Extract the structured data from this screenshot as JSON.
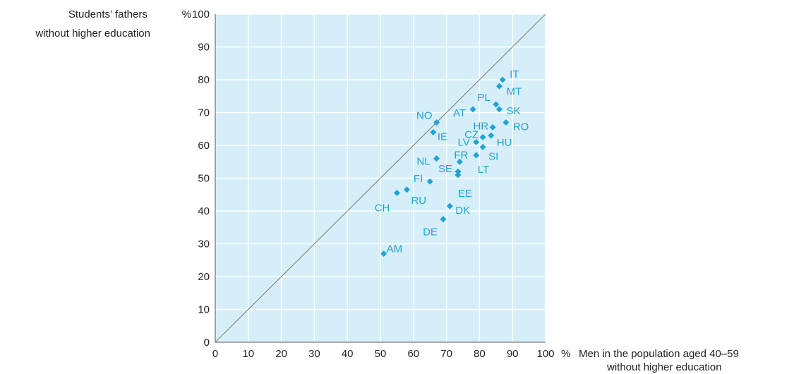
{
  "chart_data": {
    "type": "scatter",
    "ylabel": [
      "Students’ fathers",
      "without higher education"
    ],
    "xlabel": [
      "Men in the population aged 40–59",
      "without higher education"
    ],
    "xlim": [
      0,
      100
    ],
    "ylim": [
      0,
      100
    ],
    "x_ticks": [
      0,
      10,
      20,
      30,
      40,
      50,
      60,
      70,
      80,
      90,
      100
    ],
    "y_ticks": [
      0,
      10,
      20,
      30,
      40,
      50,
      60,
      70,
      80,
      90,
      100
    ],
    "x_unit": "%",
    "y_unit": "%",
    "grid": true,
    "reference_line": "diagonal",
    "colors": {
      "plot_bg": "#d6eef8",
      "grid": "#ffffff",
      "marker": "#1fa3d6",
      "diagonal": "#8a8a8a",
      "axis": "#555555"
    },
    "points": [
      {
        "label": "IT",
        "x": 87,
        "y": 80
      },
      {
        "label": "MT",
        "x": 86,
        "y": 78
      },
      {
        "label": "PL",
        "x": 85,
        "y": 72.5
      },
      {
        "label": "SK",
        "x": 86,
        "y": 71
      },
      {
        "label": "AT",
        "x": 78,
        "y": 71
      },
      {
        "label": "NO",
        "x": 67,
        "y": 67
      },
      {
        "label": "RO",
        "x": 88,
        "y": 67
      },
      {
        "label": "HR",
        "x": 84,
        "y": 65.5
      },
      {
        "label": "IE",
        "x": 66,
        "y": 64
      },
      {
        "label": "HU",
        "x": 83.5,
        "y": 63
      },
      {
        "label": "CZ",
        "x": 81,
        "y": 62.5
      },
      {
        "label": "LV",
        "x": 79,
        "y": 61
      },
      {
        "label": "SI",
        "x": 81,
        "y": 59.5
      },
      {
        "label": "LT",
        "x": 79,
        "y": 57
      },
      {
        "label": "NL",
        "x": 67,
        "y": 56
      },
      {
        "label": "FR",
        "x": 74,
        "y": 55
      },
      {
        "label": "SE",
        "x": 73.5,
        "y": 52
      },
      {
        "label": "EE",
        "x": 73.5,
        "y": 51
      },
      {
        "label": "FI",
        "x": 65,
        "y": 49
      },
      {
        "label": "RU",
        "x": 58,
        "y": 46.5
      },
      {
        "label": "CH",
        "x": 55,
        "y": 45.5
      },
      {
        "label": "DK",
        "x": 71,
        "y": 41.5
      },
      {
        "label": "DE",
        "x": 69,
        "y": 37.5
      },
      {
        "label": "AM",
        "x": 51,
        "y": 27
      }
    ]
  }
}
